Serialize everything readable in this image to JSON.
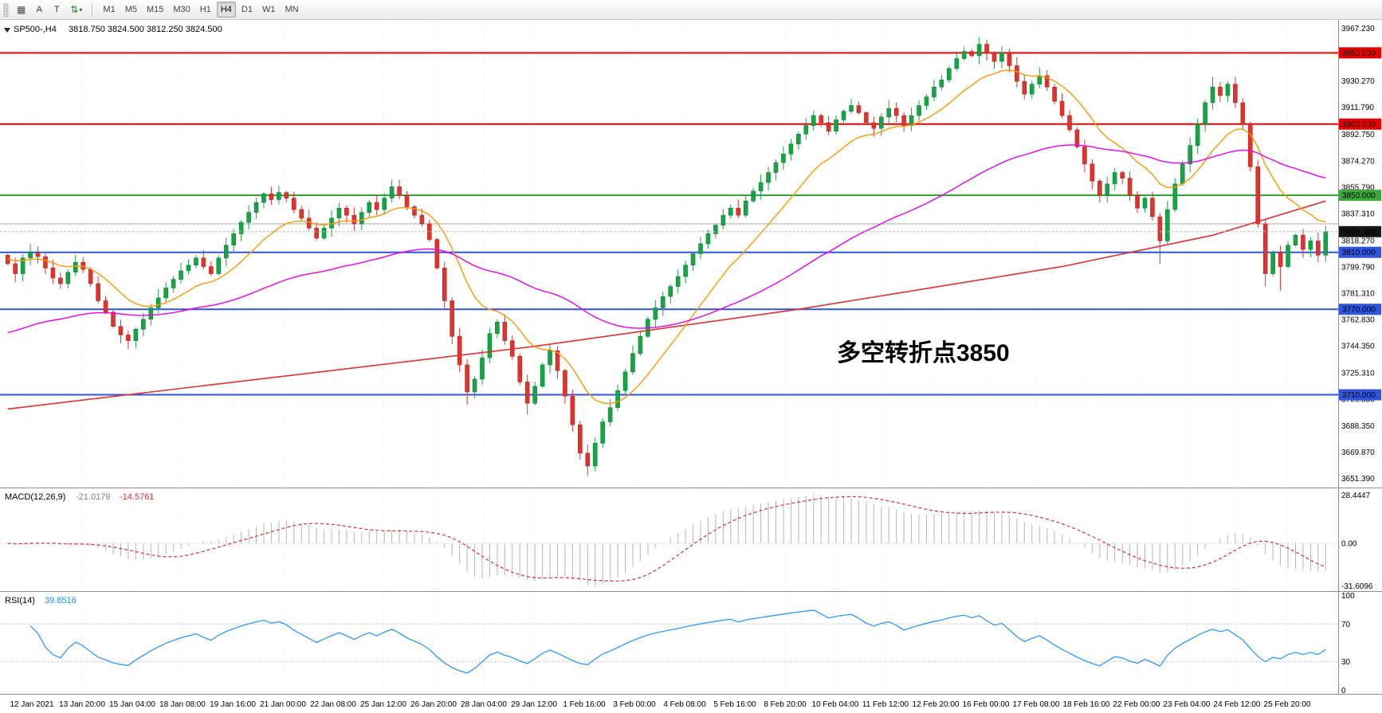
{
  "toolbar": {
    "icons": [
      {
        "name": "grid-icon",
        "glyph": "▦"
      },
      {
        "name": "cycle-arrows-icon",
        "glyph": "⇅"
      },
      {
        "name": "dropdown-caret-icon",
        "glyph": "▾"
      }
    ],
    "tool_a_label": "A",
    "tool_t_label": "T",
    "timeframes": [
      "M1",
      "M5",
      "M15",
      "M30",
      "H1",
      "H4",
      "D1",
      "W1",
      "MN"
    ],
    "active_timeframe": "H4"
  },
  "chart_header": {
    "symbol": "SP500-,H4",
    "ohlc": "3818.750 3824.500 3812.250 3824.500"
  },
  "annotation": {
    "text": "多空转折点3850",
    "color": "#f00000"
  },
  "macd": {
    "header": "MACD(12,26,9)",
    "value_main": "-21.0179",
    "value_signal": "-14.5761",
    "scale_labels": [
      "28.4447",
      "0.00",
      "-31.6096"
    ]
  },
  "rsi": {
    "header": "RSI(14)",
    "value": "39.8516",
    "scale_labels": [
      "100",
      "70",
      "30",
      "0"
    ]
  },
  "price_scale": {
    "labels": [
      "3967.230",
      "3948.750",
      "3930.270",
      "3911.790",
      "3892.750",
      "3874.270",
      "3855.790",
      "3837.310",
      "3818.270",
      "3799.790",
      "3781.310",
      "3762.830",
      "3744.350",
      "3725.310",
      "3706.830",
      "3688.350",
      "3669.870",
      "3651.390"
    ]
  },
  "x_axis": {
    "labels": [
      "12 Jan 2021",
      "13 Jan 20:00",
      "15 Jan 04:00",
      "18 Jan 08:00",
      "19 Jan 16:00",
      "21 Jan 00:00",
      "22 Jan 08:00",
      "25 Jan 12:00",
      "26 Jan 20:00",
      "28 Jan 04:00",
      "29 Jan 12:00",
      "1 Feb 16:00",
      "3 Feb 00:00",
      "4 Feb 08:00",
      "5 Feb 16:00",
      "8 Feb 20:00",
      "10 Feb 04:00",
      "11 Feb 12:00",
      "12 Feb 20:00",
      "16 Feb 00:00",
      "17 Feb 08:00",
      "18 Feb 16:00",
      "22 Feb 00:00",
      "23 Feb 04:00",
      "24 Feb 12:00",
      "25 Feb 20:00"
    ]
  },
  "chart_data": {
    "type": "candlestick",
    "symbol": "SP500",
    "timeframe": "H4",
    "ylim": [
      3646,
      3972
    ],
    "first_open": 3808,
    "closes": [
      3802,
      3795,
      3806,
      3810,
      3807,
      3799,
      3792,
      3788,
      3796,
      3803,
      3798,
      3788,
      3776,
      3768,
      3758,
      3752,
      3748,
      3756,
      3763,
      3771,
      3778,
      3785,
      3791,
      3797,
      3801,
      3806,
      3800,
      3795,
      3806,
      3815,
      3823,
      3831,
      3838,
      3845,
      3851,
      3847,
      3852,
      3848,
      3840,
      3834,
      3827,
      3820,
      3827,
      3834,
      3841,
      3836,
      3830,
      3838,
      3845,
      3840,
      3848,
      3856,
      3850,
      3842,
      3836,
      3830,
      3819,
      3799,
      3776,
      3751,
      3731,
      3712,
      3721,
      3736,
      3753,
      3761,
      3748,
      3737,
      3719,
      3704,
      3716,
      3731,
      3741,
      3727,
      3709,
      3689,
      3669,
      3660,
      3676,
      3691,
      3701,
      3713,
      3726,
      3739,
      3751,
      3763,
      3771,
      3779,
      3786,
      3793,
      3801,
      3809,
      3816,
      3823,
      3829,
      3836,
      3841,
      3836,
      3846,
      3853,
      3859,
      3866,
      3873,
      3879,
      3886,
      3893,
      3899,
      3906,
      3901,
      3895,
      3903,
      3909,
      3913,
      3908,
      3901,
      3897,
      3905,
      3911,
      3906,
      3899,
      3906,
      3913,
      3919,
      3926,
      3931,
      3939,
      3946,
      3951,
      3948,
      3956,
      3950,
      3944,
      3950,
      3941,
      3930,
      3921,
      3928,
      3934,
      3926,
      3916,
      3906,
      3896,
      3884,
      3872,
      3860,
      3850,
      3858,
      3866,
      3862,
      3850,
      3841,
      3848,
      3835,
      3818,
      3840,
      3858,
      3872,
      3885,
      3900,
      3915,
      3926,
      3920,
      3928,
      3915,
      3900,
      3870,
      3830,
      3795,
      3810,
      3800,
      3815,
      3822,
      3812,
      3818,
      3808,
      3824.5
    ],
    "wick_overrides": {
      "16": {
        "low": 3742
      },
      "36": {
        "high": 3857
      },
      "51": {
        "high": 3861
      },
      "61": {
        "low": 3703
      },
      "69": {
        "low": 3696
      },
      "77": {
        "low": 3653
      },
      "129": {
        "high": 3961
      },
      "153": {
        "low": 3802
      },
      "160": {
        "high": 3933
      },
      "167": {
        "low": 3786
      },
      "169": {
        "low": 3783
      }
    },
    "up_color": "#17a445",
    "up_border": "#0f8038",
    "down_color": "#e0332e",
    "down_border": "#b02a25",
    "levels": [
      {
        "price": 3950,
        "color": "#f00000",
        "width": 2,
        "label": "3950.000",
        "label_bg": "#e80000"
      },
      {
        "price": 3900,
        "color": "#f00000",
        "width": 2,
        "label": "3900.000",
        "label_bg": "#e80000"
      },
      {
        "price": 3850,
        "color": "#2f9e2f",
        "width": 2,
        "label": "3850.000",
        "label_bg": "#3aa83a"
      },
      {
        "price": 3830,
        "color": "#a8a8a8",
        "width": 1,
        "label": null,
        "label_bg": null
      },
      {
        "price": 3810,
        "color": "#2f55dd",
        "width": 2,
        "label": "3810.000",
        "label_bg": "#2f55dd"
      },
      {
        "price": 3770,
        "color": "#2f55dd",
        "width": 2,
        "label": "3770.000",
        "label_bg": "#2f55dd"
      },
      {
        "price": 3710,
        "color": "#2f55dd",
        "width": 2,
        "label": "3710.000",
        "label_bg": "#2f55dd"
      }
    ],
    "current_price": {
      "value": 3824.5,
      "label": "3824.500",
      "label_bg": "#151515",
      "line_color": "#b8b8b8"
    },
    "moving_averages": [
      {
        "name": "ema-fast",
        "period": 13,
        "seed": 3806,
        "color": "#ff9900"
      },
      {
        "name": "ema-mid",
        "period": 60,
        "seed": 3752,
        "color": "#ee00ee"
      }
    ],
    "trend_ma": {
      "color": "#e03030",
      "points": [
        [
          0,
          3700
        ],
        [
          35,
          3722
        ],
        [
          70,
          3744
        ],
        [
          105,
          3770
        ],
        [
          140,
          3800
        ],
        [
          160,
          3822
        ],
        [
          175,
          3846
        ]
      ]
    },
    "macd": {
      "fast": 12,
      "slow": 26,
      "signal": 9,
      "hist_color": "#b5b5b5",
      "signal_color": "#d03030"
    },
    "rsi": {
      "period": 14,
      "color": "#1f8fff",
      "levels": [
        70,
        30
      ]
    }
  }
}
